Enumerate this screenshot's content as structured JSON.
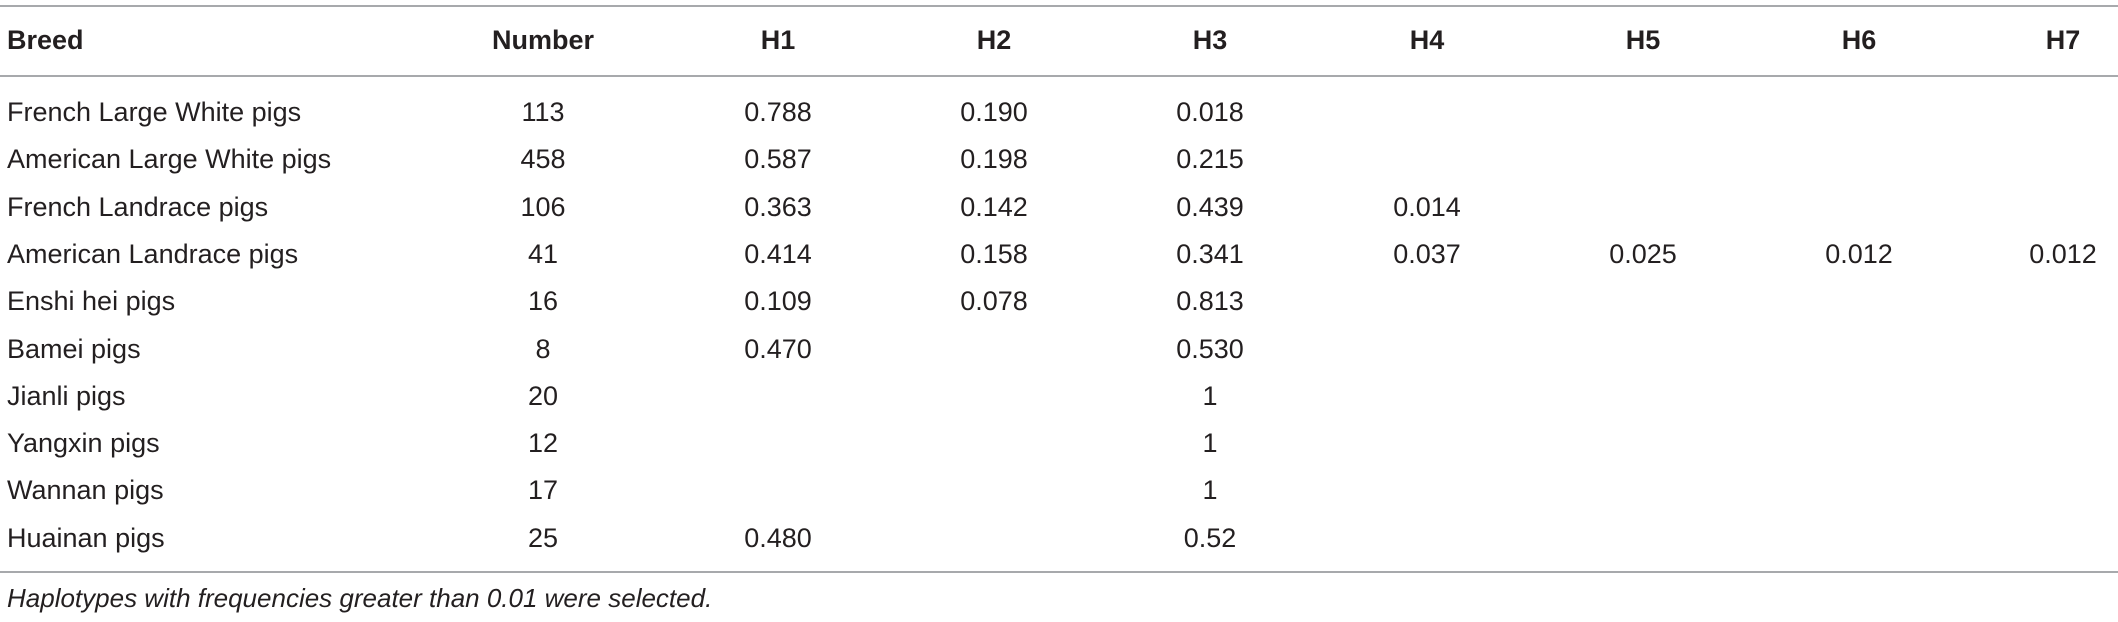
{
  "table": {
    "header": [
      "Breed",
      "Number",
      "H1",
      "H2",
      "H3",
      "H4",
      "H5",
      "H6",
      "H7"
    ],
    "rows": [
      [
        "French Large White pigs",
        "113",
        "0.788",
        "0.190",
        "0.018",
        null,
        null,
        null,
        null
      ],
      [
        "American Large White pigs",
        "458",
        "0.587",
        "0.198",
        "0.215",
        null,
        null,
        null,
        null
      ],
      [
        "French Landrace pigs",
        "106",
        "0.363",
        "0.142",
        "0.439",
        "0.014",
        null,
        null,
        null
      ],
      [
        "American Landrace pigs",
        "41",
        "0.414",
        "0.158",
        "0.341",
        "0.037",
        "0.025",
        "0.012",
        "0.012"
      ],
      [
        "Enshi hei pigs",
        "16",
        "0.109",
        "0.078",
        "0.813",
        null,
        null,
        null,
        null
      ],
      [
        "Bamei pigs",
        "8",
        "0.470",
        null,
        "0.530",
        null,
        null,
        null,
        null
      ],
      [
        "Jianli pigs",
        "20",
        null,
        null,
        "1",
        null,
        null,
        null,
        null
      ],
      [
        "Yangxin pigs",
        "12",
        null,
        null,
        "1",
        null,
        null,
        null,
        null
      ],
      [
        "Wannan pigs",
        "17",
        null,
        null,
        "1",
        null,
        null,
        null,
        null
      ],
      [
        "Huainan pigs",
        "25",
        "0.480",
        null,
        "0.52",
        null,
        null,
        null,
        null
      ]
    ],
    "footnote": "Haplotypes with frequencies greater than 0.01 were selected."
  }
}
